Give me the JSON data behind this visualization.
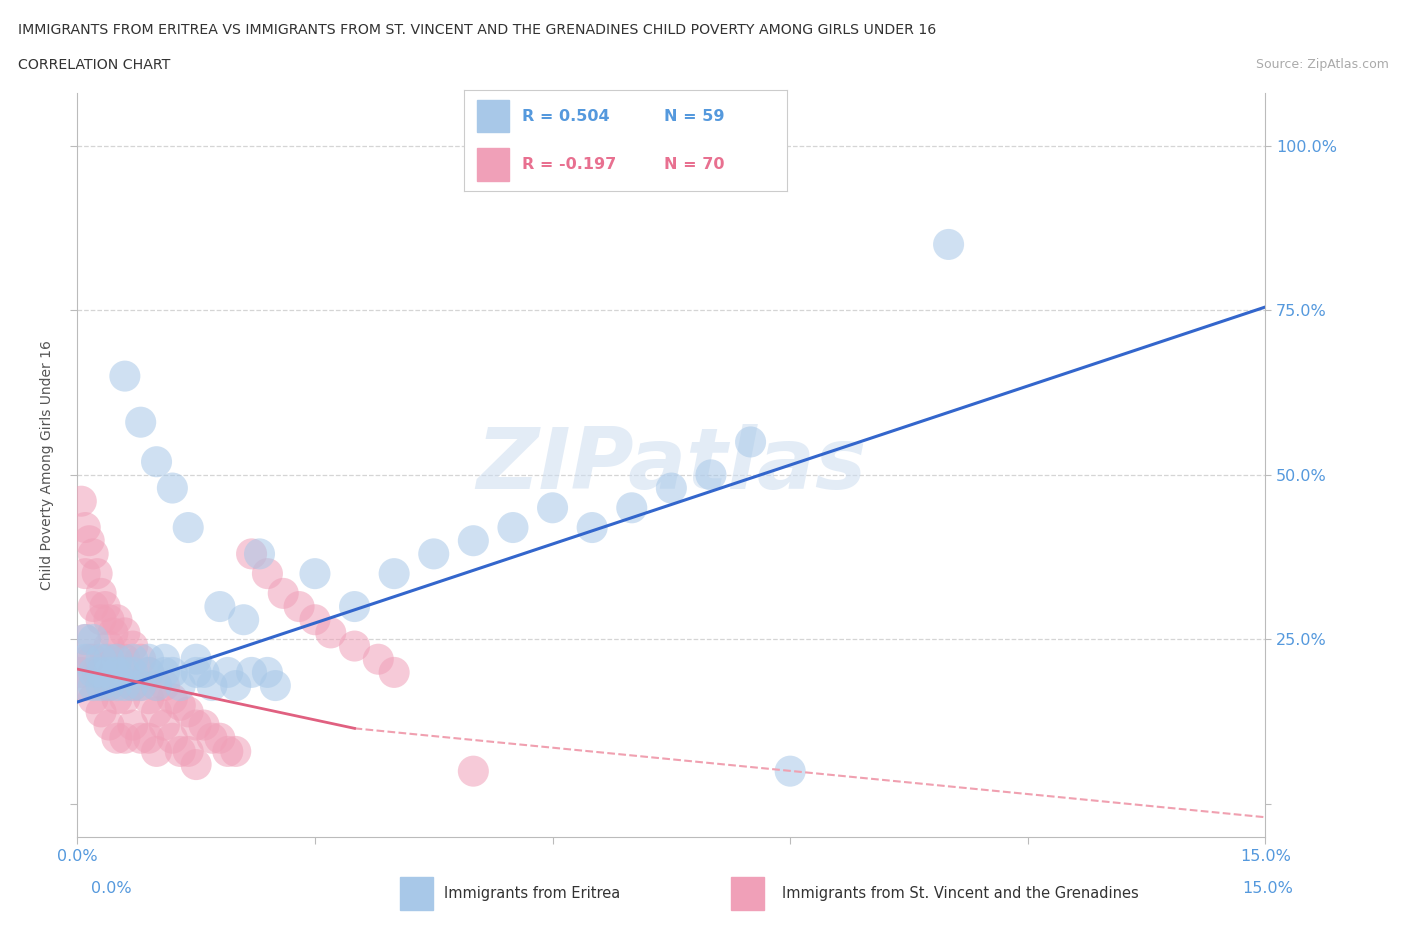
{
  "title_line1": "IMMIGRANTS FROM ERITREA VS IMMIGRANTS FROM ST. VINCENT AND THE GRENADINES CHILD POVERTY AMONG GIRLS UNDER 16",
  "title_line2": "CORRELATION CHART",
  "source": "Source: ZipAtlas.com",
  "ylabel": "Child Poverty Among Girls Under 16",
  "xlim": [
    0.0,
    0.15
  ],
  "ylim": [
    -0.05,
    1.08
  ],
  "color_eritrea": "#a8c8e8",
  "color_svg": "#f0a0b8",
  "trendline_eritrea": "#3366cc",
  "trendline_svg_solid": "#e06080",
  "trendline_svg_dash": "#f0a0b0",
  "eritrea_trend_x0": 0.0,
  "eritrea_trend_y0": 0.155,
  "eritrea_trend_x1": 0.15,
  "eritrea_trend_y1": 0.755,
  "svg_trend_solid_x0": 0.0,
  "svg_trend_solid_y0": 0.205,
  "svg_trend_solid_x1": 0.035,
  "svg_trend_solid_y1": 0.115,
  "svg_trend_dash_x0": 0.035,
  "svg_trend_dash_y0": 0.115,
  "svg_trend_dash_x1": 0.15,
  "svg_trend_dash_y1": -0.02,
  "eritrea_x": [
    0.001,
    0.001,
    0.001,
    0.002,
    0.002,
    0.002,
    0.003,
    0.003,
    0.003,
    0.004,
    0.004,
    0.004,
    0.005,
    0.005,
    0.005,
    0.006,
    0.006,
    0.006,
    0.007,
    0.007,
    0.007,
    0.008,
    0.008,
    0.009,
    0.009,
    0.01,
    0.01,
    0.011,
    0.011,
    0.012,
    0.012,
    0.013,
    0.014,
    0.015,
    0.015,
    0.016,
    0.017,
    0.018,
    0.019,
    0.02,
    0.021,
    0.022,
    0.023,
    0.024,
    0.025,
    0.03,
    0.035,
    0.04,
    0.045,
    0.05,
    0.055,
    0.06,
    0.065,
    0.07,
    0.075,
    0.08,
    0.085,
    0.09,
    0.11
  ],
  "eritrea_y": [
    0.18,
    0.22,
    0.25,
    0.18,
    0.2,
    0.25,
    0.18,
    0.2,
    0.22,
    0.18,
    0.2,
    0.22,
    0.18,
    0.2,
    0.22,
    0.18,
    0.2,
    0.65,
    0.18,
    0.2,
    0.22,
    0.18,
    0.58,
    0.2,
    0.22,
    0.18,
    0.52,
    0.2,
    0.22,
    0.2,
    0.48,
    0.18,
    0.42,
    0.2,
    0.22,
    0.2,
    0.18,
    0.3,
    0.2,
    0.18,
    0.28,
    0.2,
    0.38,
    0.2,
    0.18,
    0.35,
    0.3,
    0.35,
    0.38,
    0.4,
    0.42,
    0.45,
    0.42,
    0.45,
    0.48,
    0.5,
    0.55,
    0.05,
    0.85
  ],
  "svg_x": [
    0.0005,
    0.0005,
    0.001,
    0.001,
    0.001,
    0.001,
    0.0015,
    0.0015,
    0.002,
    0.002,
    0.002,
    0.002,
    0.0025,
    0.0025,
    0.003,
    0.003,
    0.003,
    0.003,
    0.0035,
    0.0035,
    0.004,
    0.004,
    0.004,
    0.004,
    0.0045,
    0.005,
    0.005,
    0.005,
    0.005,
    0.006,
    0.006,
    0.006,
    0.006,
    0.007,
    0.007,
    0.007,
    0.008,
    0.008,
    0.008,
    0.009,
    0.009,
    0.009,
    0.01,
    0.01,
    0.01,
    0.011,
    0.011,
    0.012,
    0.012,
    0.013,
    0.013,
    0.014,
    0.014,
    0.015,
    0.015,
    0.016,
    0.017,
    0.018,
    0.019,
    0.02,
    0.022,
    0.024,
    0.026,
    0.028,
    0.03,
    0.032,
    0.035,
    0.038,
    0.04,
    0.05
  ],
  "svg_y": [
    0.46,
    0.2,
    0.42,
    0.35,
    0.25,
    0.18,
    0.4,
    0.22,
    0.38,
    0.3,
    0.22,
    0.16,
    0.35,
    0.2,
    0.32,
    0.28,
    0.2,
    0.14,
    0.3,
    0.22,
    0.28,
    0.24,
    0.18,
    0.12,
    0.26,
    0.28,
    0.22,
    0.16,
    0.1,
    0.26,
    0.22,
    0.16,
    0.1,
    0.24,
    0.18,
    0.12,
    0.22,
    0.18,
    0.1,
    0.2,
    0.16,
    0.1,
    0.18,
    0.14,
    0.08,
    0.18,
    0.12,
    0.16,
    0.1,
    0.15,
    0.08,
    0.14,
    0.08,
    0.12,
    0.06,
    0.12,
    0.1,
    0.1,
    0.08,
    0.08,
    0.38,
    0.35,
    0.32,
    0.3,
    0.28,
    0.26,
    0.24,
    0.22,
    0.2,
    0.05
  ]
}
